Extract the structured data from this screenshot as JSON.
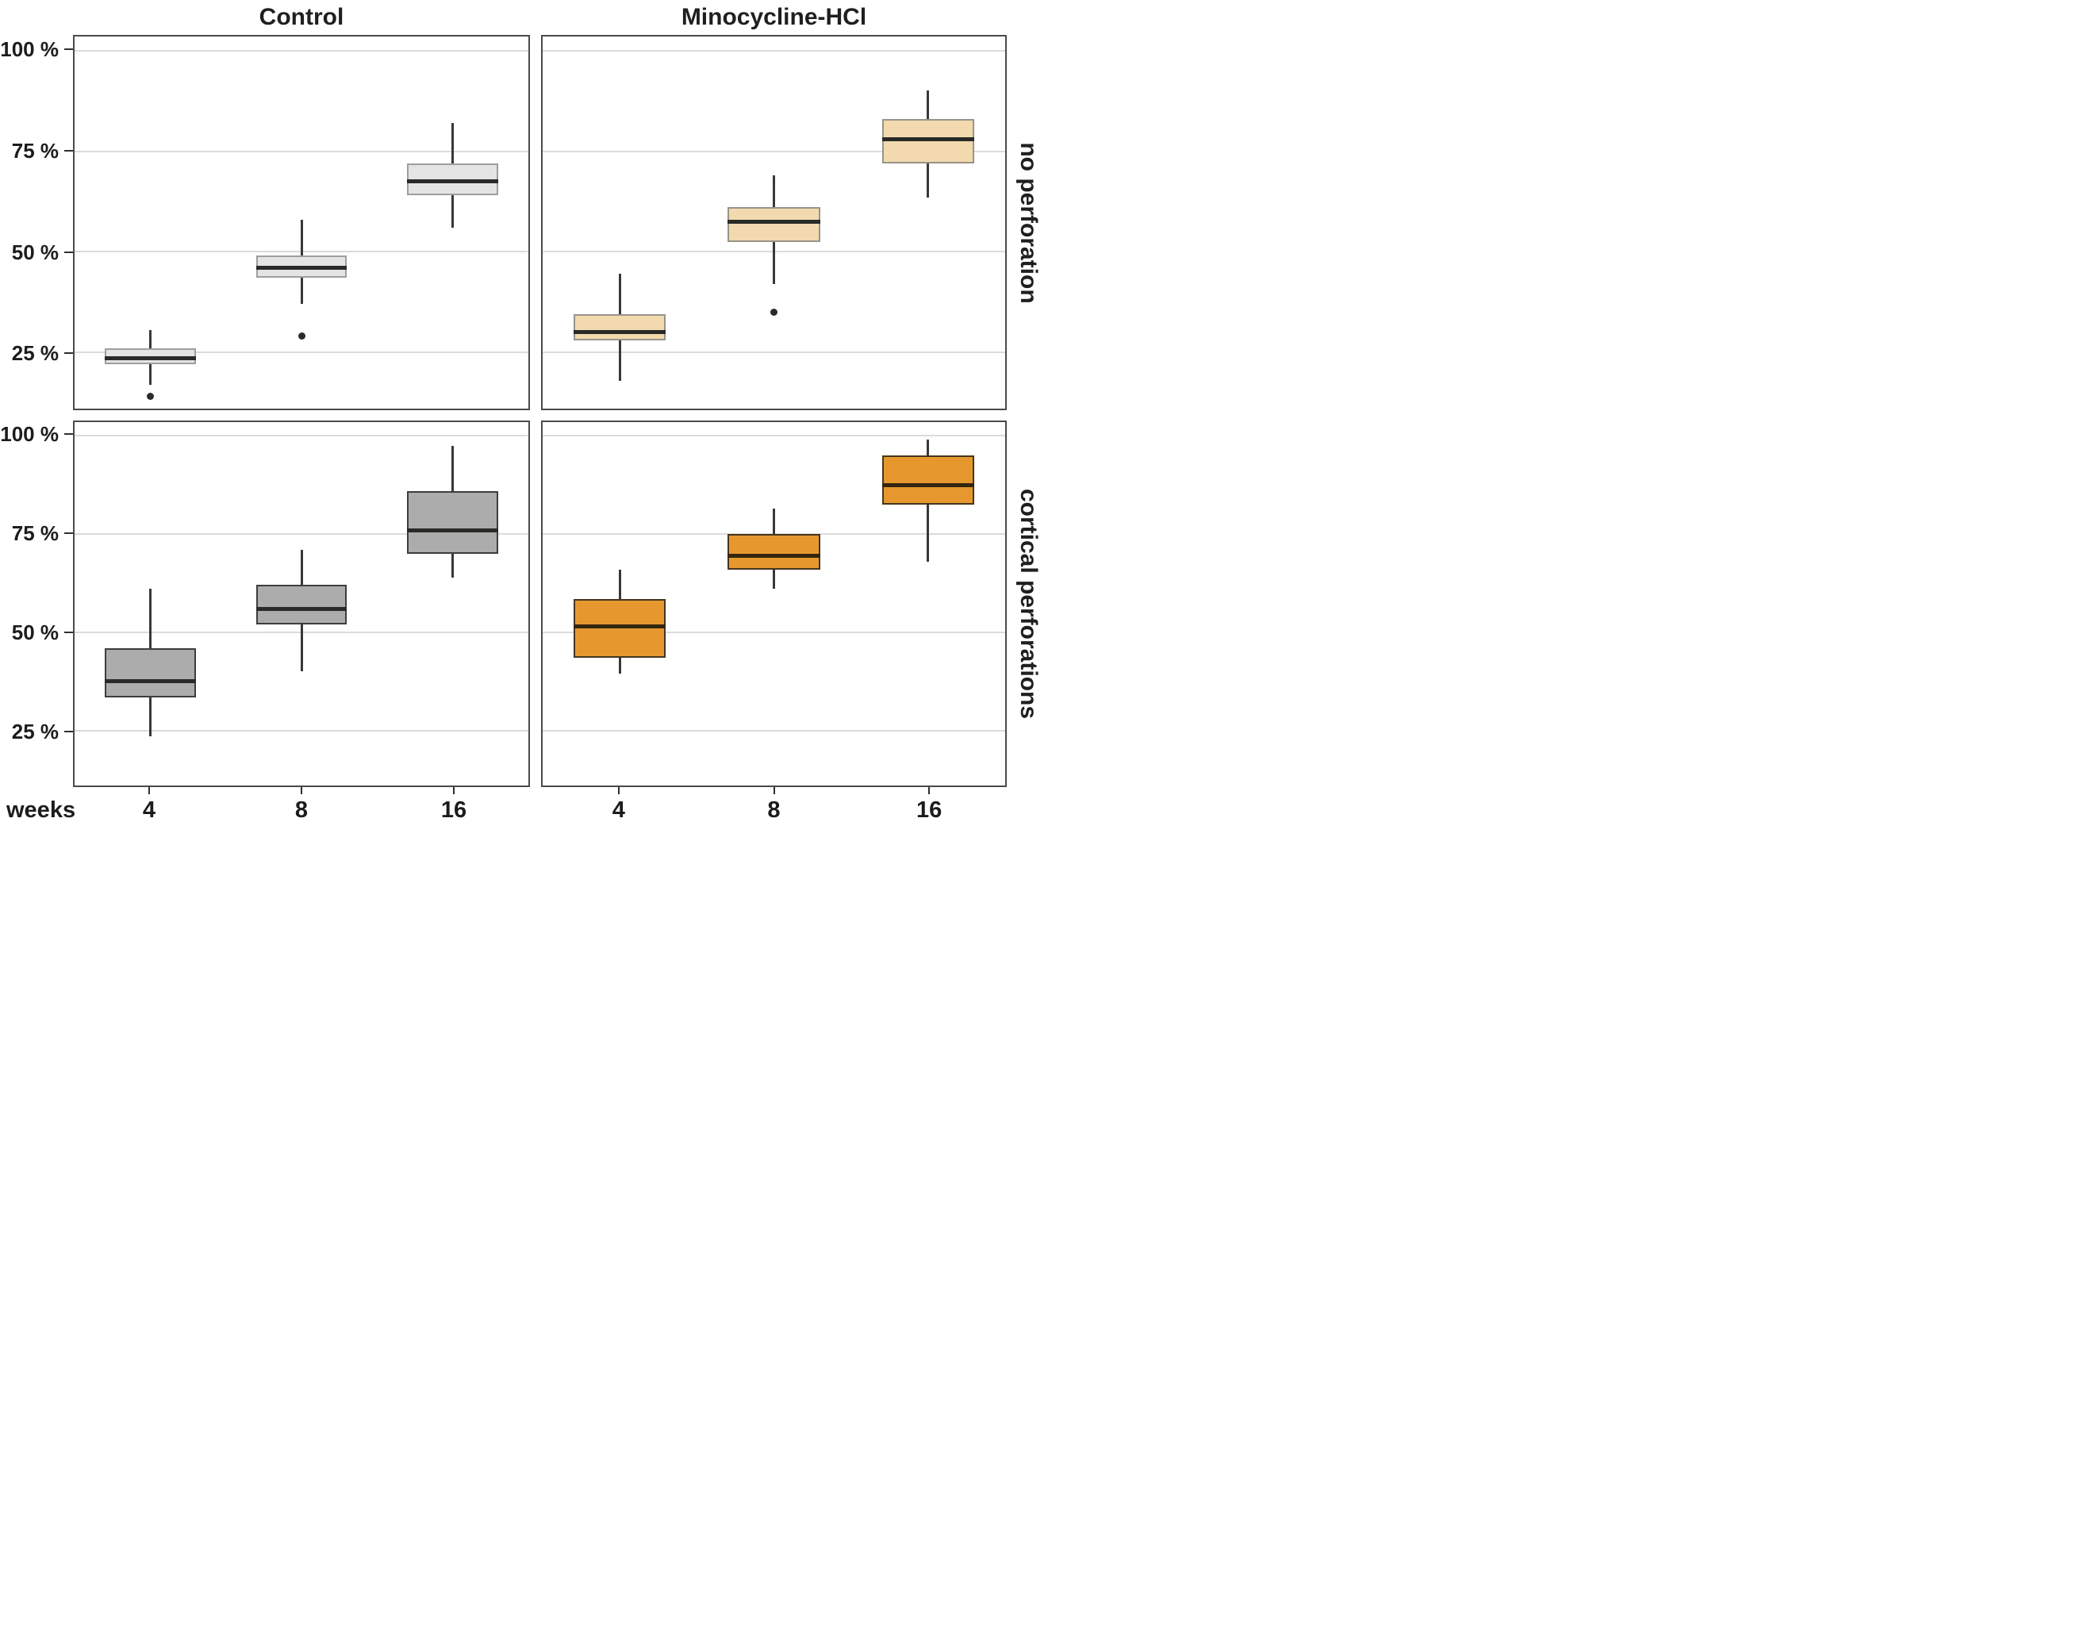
{
  "chart_data": {
    "type": "boxplot",
    "description": "2x2 faceted box plots; percentage outcome by weeks, columns = treatment group, rows = perforation condition",
    "unit_label": "weeks",
    "categories": [
      "4",
      "8",
      "16"
    ],
    "col_facets": [
      "Control",
      "Minocycline-HCl"
    ],
    "row_facets": [
      "no perforation",
      "cortical perforations"
    ],
    "y_ticks": [
      {
        "value": 100,
        "label": "100 %"
      },
      {
        "value": 75,
        "label": "75 %"
      },
      {
        "value": 50,
        "label": "50 %"
      },
      {
        "value": 25,
        "label": "25 %"
      }
    ],
    "ylim": [
      11,
      103.5
    ],
    "grid_on": true,
    "colors": {
      "grid": "#dbdbdb",
      "panel_border": "#4a4a4a",
      "whisker": "#383838",
      "outlier": "#2b2b2b",
      "text": "#1c1c1c"
    },
    "panels": [
      {
        "col_index": 0,
        "row_index": 0,
        "col": "Control",
        "row": "no perforation",
        "fill": "#e4e4e4",
        "stroke": "#9e9e9e",
        "median_color": "#2a2a28",
        "boxes": [
          {
            "week": "4",
            "low": 17,
            "q1": 22,
            "median": 23.5,
            "q3": 26,
            "high": 30.5,
            "outliers": [
              14
            ]
          },
          {
            "week": "8",
            "low": 37,
            "q1": 43.5,
            "median": 46,
            "q3": 49,
            "high": 58,
            "outliers": [
              29
            ]
          },
          {
            "week": "16",
            "low": 56,
            "q1": 64,
            "median": 67.5,
            "q3": 72,
            "high": 82,
            "outliers": []
          }
        ]
      },
      {
        "col_index": 1,
        "row_index": 0,
        "col": "Minocycline-HCl",
        "row": "no perforation",
        "fill": "#f2daae",
        "stroke": "#98938a",
        "median_color": "#2a2a28",
        "boxes": [
          {
            "week": "4",
            "low": 18,
            "q1": 28,
            "median": 30,
            "q3": 34.5,
            "high": 44.5,
            "outliers": []
          },
          {
            "week": "8",
            "low": 42,
            "q1": 52.5,
            "median": 57.5,
            "q3": 61,
            "high": 69,
            "outliers": [
              35
            ]
          },
          {
            "week": "16",
            "low": 63.5,
            "q1": 72,
            "median": 78,
            "q3": 83,
            "high": 90,
            "outliers": []
          }
        ]
      },
      {
        "col_index": 0,
        "row_index": 1,
        "col": "Control",
        "row": "cortical perforations",
        "fill": "#acacac",
        "stroke": "#3d3d3b",
        "median_color": "#2a2a28",
        "boxes": [
          {
            "week": "4",
            "low": 23.5,
            "q1": 33.5,
            "median": 37.5,
            "q3": 46,
            "high": 61,
            "outliers": []
          },
          {
            "week": "8",
            "low": 40,
            "q1": 52,
            "median": 56,
            "q3": 62,
            "high": 71,
            "outliers": []
          },
          {
            "week": "16",
            "low": 64,
            "q1": 70,
            "median": 76,
            "q3": 86,
            "high": 97.5,
            "outliers": []
          }
        ]
      },
      {
        "col_index": 1,
        "row_index": 1,
        "col": "Minocycline-HCl",
        "row": "cortical perforations",
        "fill": "#e6982f",
        "stroke": "#45351f",
        "median_color": "#33260f",
        "boxes": [
          {
            "week": "4",
            "low": 39.5,
            "q1": 43.5,
            "median": 51.5,
            "q3": 58.5,
            "high": 66,
            "outliers": []
          },
          {
            "week": "8",
            "low": 61,
            "q1": 66,
            "median": 69.5,
            "q3": 75,
            "high": 81.5,
            "outliers": []
          },
          {
            "week": "16",
            "low": 68,
            "q1": 82.5,
            "median": 87.5,
            "q3": 95,
            "high": 99,
            "outliers": []
          }
        ]
      }
    ]
  }
}
